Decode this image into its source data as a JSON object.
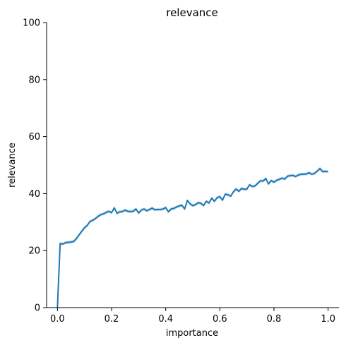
{
  "chart_data": {
    "type": "line",
    "title": "relevance",
    "xlabel": "importance",
    "ylabel": "relevance",
    "xlim": [
      -0.04,
      1.04
    ],
    "ylim": [
      0,
      100
    ],
    "xticks": [
      0.0,
      0.2,
      0.4,
      0.6,
      0.8,
      1.0
    ],
    "xtick_labels": [
      "0.0",
      "0.2",
      "0.4",
      "0.6",
      "0.8",
      "1.0"
    ],
    "yticks": [
      0,
      20,
      40,
      60,
      80,
      100
    ],
    "ytick_labels": [
      "0",
      "20",
      "40",
      "60",
      "80",
      "100"
    ],
    "grid": false,
    "line_color": "#1f77b4",
    "band_color": "#1f77b4",
    "series": [
      {
        "x": [
          0.0,
          0.01,
          0.02,
          0.03,
          0.04,
          0.05,
          0.06,
          0.07,
          0.08,
          0.09,
          0.1,
          0.11,
          0.12,
          0.13,
          0.14,
          0.15,
          0.16,
          0.17,
          0.18,
          0.19,
          0.2,
          0.21,
          0.22,
          0.23,
          0.24,
          0.25,
          0.26,
          0.27,
          0.28,
          0.29,
          0.3,
          0.31,
          0.32,
          0.33,
          0.34,
          0.35,
          0.36,
          0.37,
          0.38,
          0.39,
          0.4,
          0.41,
          0.42,
          0.43,
          0.44,
          0.45,
          0.46,
          0.47,
          0.48,
          0.49,
          0.5,
          0.51,
          0.52,
          0.53,
          0.54,
          0.55,
          0.56,
          0.57,
          0.58,
          0.59,
          0.6,
          0.61,
          0.62,
          0.63,
          0.64,
          0.65,
          0.66,
          0.67,
          0.68,
          0.69,
          0.7,
          0.71,
          0.72,
          0.73,
          0.74,
          0.75,
          0.76,
          0.77,
          0.78,
          0.79,
          0.8,
          0.81,
          0.82,
          0.83,
          0.84,
          0.85,
          0.86,
          0.87,
          0.88,
          0.89,
          0.9,
          0.91,
          0.92,
          0.93,
          0.94,
          0.95,
          0.96,
          0.97,
          0.98,
          0.99,
          1.0
        ],
        "y": [
          0.0,
          22.5,
          22.3,
          22.8,
          22.9,
          23.0,
          23.2,
          24.2,
          25.5,
          26.8,
          28.0,
          28.8,
          30.2,
          30.6,
          31.2,
          32.0,
          32.6,
          32.9,
          33.4,
          33.8,
          33.3,
          35.0,
          33.1,
          33.6,
          33.7,
          34.2,
          33.8,
          33.7,
          33.8,
          34.6,
          33.2,
          34.2,
          34.6,
          34.0,
          34.4,
          34.9,
          34.3,
          34.4,
          34.4,
          34.6,
          35.1,
          33.6,
          34.6,
          34.8,
          35.3,
          35.7,
          35.9,
          34.6,
          37.6,
          36.4,
          35.8,
          36.1,
          36.8,
          36.6,
          35.8,
          37.3,
          36.7,
          38.4,
          37.3,
          38.6,
          38.9,
          37.7,
          39.8,
          39.6,
          39.1,
          40.6,
          41.6,
          40.8,
          41.8,
          41.5,
          41.6,
          43.1,
          42.5,
          42.7,
          43.6,
          44.5,
          44.4,
          45.3,
          43.4,
          44.6,
          44.0,
          44.7,
          45.0,
          45.4,
          45.1,
          46.1,
          46.3,
          46.4,
          46.0,
          46.5,
          46.8,
          46.8,
          46.9,
          47.3,
          46.8,
          47.1,
          47.9,
          48.8,
          47.7,
          47.8,
          47.7
        ]
      }
    ]
  }
}
